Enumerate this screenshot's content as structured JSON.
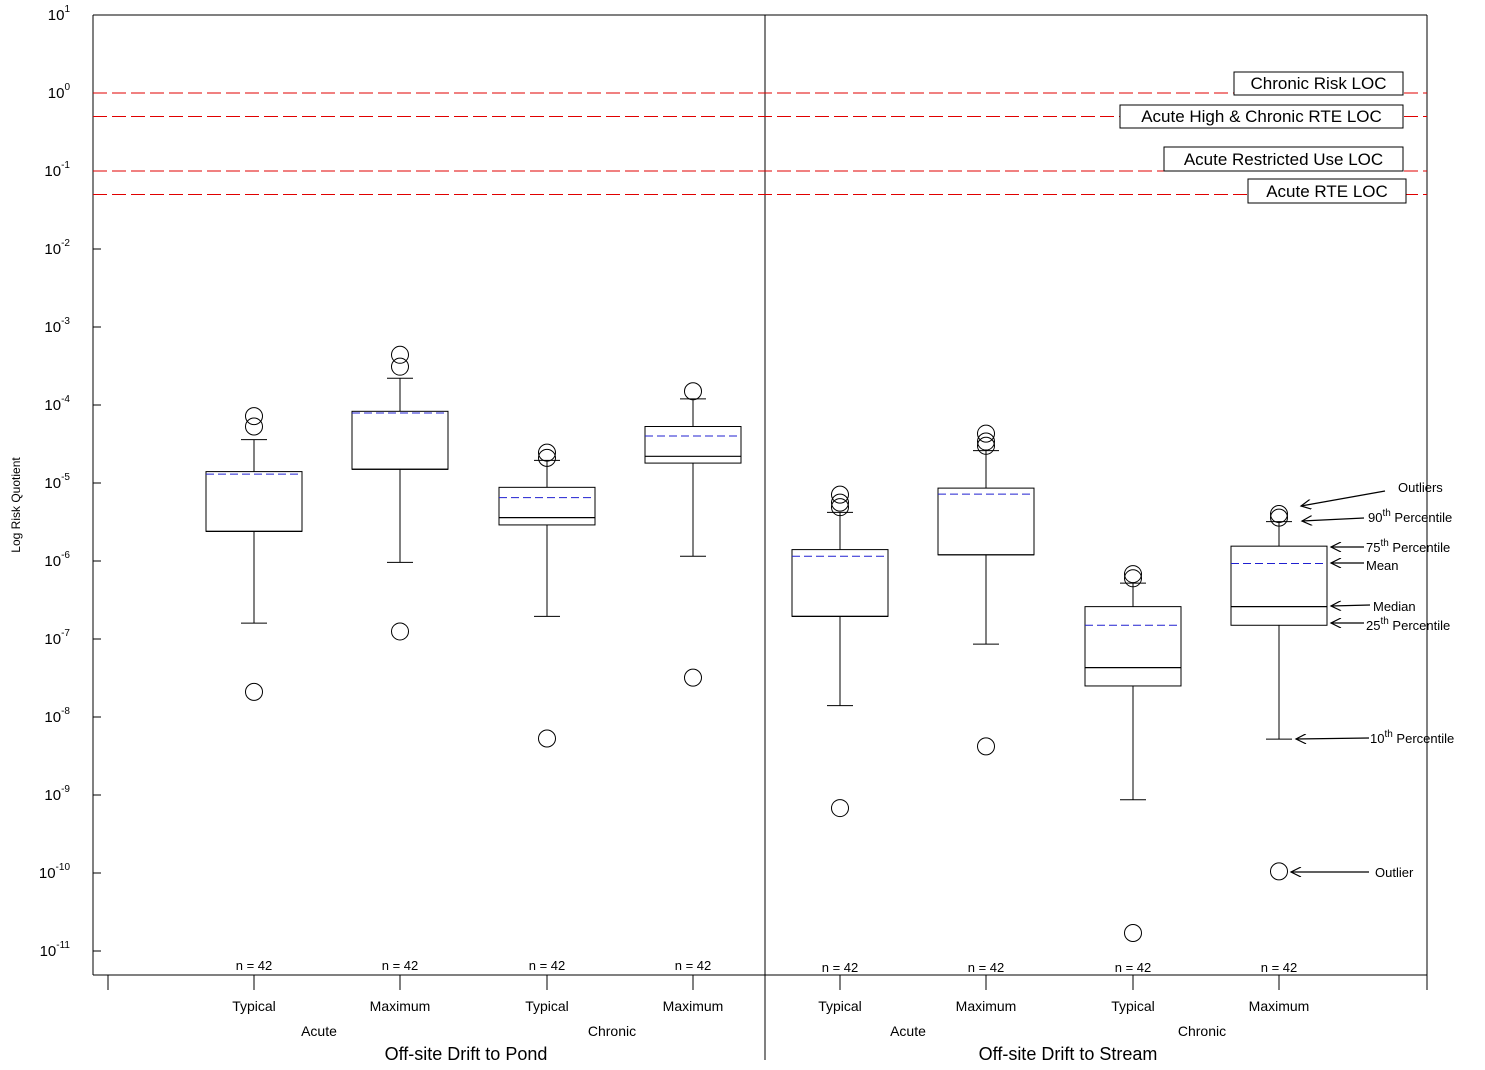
{
  "chart_data": {
    "type": "box",
    "ylabel": "Log Risk Quotient",
    "yscale": "log",
    "ylim": [
      5e-12,
      10
    ],
    "yticks": [
      {
        "base": "10",
        "exp": "1",
        "value": 10
      },
      {
        "base": "10",
        "exp": "0",
        "value": 1
      },
      {
        "base": "10",
        "exp": "-1",
        "value": 0.1
      },
      {
        "base": "10",
        "exp": "-2",
        "value": 0.01
      },
      {
        "base": "10",
        "exp": "-3",
        "value": 0.001
      },
      {
        "base": "10",
        "exp": "-4",
        "value": 0.0001
      },
      {
        "base": "10",
        "exp": "-5",
        "value": 1e-05
      },
      {
        "base": "10",
        "exp": "-6",
        "value": 1e-06
      },
      {
        "base": "10",
        "exp": "-7",
        "value": 1e-07
      },
      {
        "base": "10",
        "exp": "-8",
        "value": 1e-08
      },
      {
        "base": "10",
        "exp": "-9",
        "value": 1e-09
      },
      {
        "base": "10",
        "exp": "-10",
        "value": 1e-10
      },
      {
        "base": "10",
        "exp": "-11",
        "value": 1e-11
      }
    ],
    "panels": [
      {
        "title": "Off-site Drift to Pond",
        "groups": [
          {
            "label": "Acute",
            "boxes": [
              0,
              1
            ]
          },
          {
            "label": "Chronic",
            "boxes": [
              2,
              3
            ]
          }
        ],
        "boxes": [
          {
            "label": "Typical",
            "n": "n = 42",
            "p10": 1.6e-07,
            "p25": 2.4e-06,
            "median": 2.4e-06,
            "p75": 1.4e-05,
            "p90": 3.6e-05,
            "mean": 1.3e-05,
            "outliers": [
              7.2e-05,
              5.3e-05,
              2.1e-08
            ]
          },
          {
            "label": "Maximum",
            "n": "n = 42",
            "p10": 9.6e-07,
            "p25": 1.5e-05,
            "median": 1.5e-05,
            "p75": 8.3e-05,
            "p90": 0.00022,
            "mean": 7.9e-05,
            "outliers": [
              0.00044,
              0.00031,
              1.25e-07
            ]
          },
          {
            "label": "Typical",
            "n": "n = 42",
            "p10": 1.95e-07,
            "p25": 2.9e-06,
            "median": 3.6e-06,
            "p75": 8.8e-06,
            "p90": 1.95e-05,
            "mean": 6.5e-06,
            "outliers": [
              2.45e-05,
              2.1e-05,
              5.3e-09
            ]
          },
          {
            "label": "Maximum",
            "n": "n = 42",
            "p10": 1.15e-06,
            "p25": 1.8e-05,
            "median": 2.2e-05,
            "p75": 5.3e-05,
            "p90": 0.00012,
            "mean": 4e-05,
            "outliers": [
              0.00015,
              3.2e-08
            ]
          }
        ]
      },
      {
        "title": "Off-site Drift to Stream",
        "groups": [
          {
            "label": "Acute",
            "boxes": [
              0,
              1
            ]
          },
          {
            "label": "Chronic",
            "boxes": [
              2,
              3
            ]
          }
        ],
        "boxes": [
          {
            "label": "Typical",
            "n": "n = 42",
            "p10": 1.4e-08,
            "p25": 1.95e-07,
            "median": 1.95e-07,
            "p75": 1.4e-06,
            "p90": 4.2e-06,
            "mean": 1.15e-06,
            "outliers": [
              7.1e-06,
              5.6e-06,
              4.9e-06,
              6.8e-10
            ]
          },
          {
            "label": "Maximum",
            "n": "n = 42",
            "p10": 8.6e-08,
            "p25": 1.2e-06,
            "median": 1.2e-06,
            "p75": 8.6e-06,
            "p90": 2.6e-05,
            "mean": 7.2e-06,
            "outliers": [
              4.3e-05,
              3.4e-05,
              3e-05,
              4.2e-09
            ]
          },
          {
            "label": "Typical",
            "n": "n = 42",
            "p10": 8.7e-10,
            "p25": 2.5e-08,
            "median": 4.3e-08,
            "p75": 2.6e-07,
            "p90": 5.2e-07,
            "mean": 1.5e-07,
            "outliers": [
              6.8e-07,
              6e-07,
              1.7e-11
            ]
          },
          {
            "label": "Maximum",
            "n": "n = 42",
            "p10": 5.2e-09,
            "p25": 1.5e-07,
            "median": 2.6e-07,
            "p75": 1.55e-06,
            "p90": 3.2e-06,
            "mean": 9.3e-07,
            "outliers": [
              4e-06,
              3.6e-06,
              1.05e-10
            ]
          }
        ]
      }
    ],
    "reference_lines": [
      {
        "label": "Chronic Risk LOC",
        "value": 1,
        "color": "#e00000"
      },
      {
        "label": "Acute High & Chronic RTE LOC",
        "value": 0.5,
        "color": "#e00000"
      },
      {
        "label": "Acute Restricted Use LOC",
        "value": 0.1,
        "color": "#e00000"
      },
      {
        "label": "Acute RTE LOC",
        "value": 0.05,
        "color": "#e00000"
      }
    ],
    "mean_line_color": "#2020d0",
    "annotations": [
      {
        "text": "Outliers",
        "target": "outliers-upper"
      },
      {
        "text": "90",
        "sup": "th",
        "suffix": " Percentile",
        "target": "p90"
      },
      {
        "text": "75",
        "sup": "th",
        "suffix": " Percentile",
        "target": "p75"
      },
      {
        "text": "Mean",
        "target": "mean"
      },
      {
        "text": "Median",
        "target": "median"
      },
      {
        "text": "25",
        "sup": "th",
        "suffix": " Percentile",
        "target": "p25"
      },
      {
        "text": "10",
        "sup": "th",
        "suffix": " Percentile",
        "target": "p10"
      },
      {
        "text": "Outlier",
        "target": "outlier-lower"
      }
    ]
  }
}
